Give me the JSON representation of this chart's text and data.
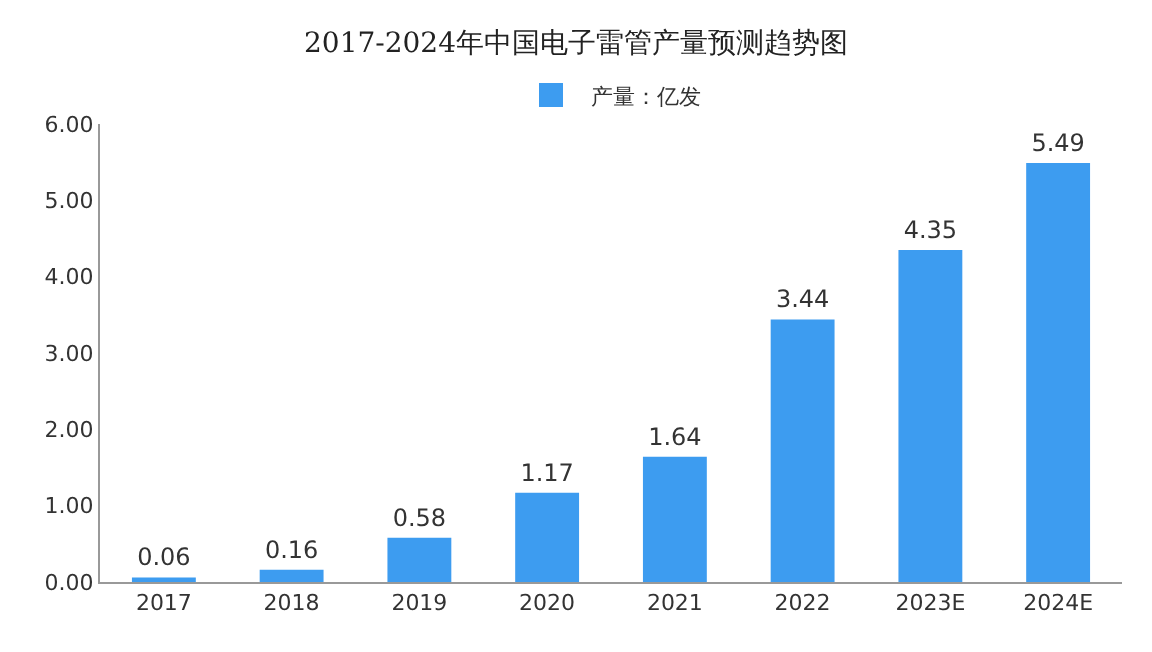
{
  "chart_data": {
    "type": "bar",
    "title": "2017-2024年中国电子雷管产量预测趋势图",
    "categories": [
      "2017",
      "2018",
      "2019",
      "2020",
      "2021",
      "2022",
      "2023E",
      "2024E"
    ],
    "series": [
      {
        "name": "产量：亿发",
        "color": "#3d9cf0",
        "values": [
          0.06,
          0.16,
          0.58,
          1.17,
          1.64,
          3.44,
          4.35,
          5.49
        ]
      }
    ],
    "ylim": [
      0,
      6
    ],
    "yticks": [
      {
        "value": 0,
        "label": "0.00"
      },
      {
        "value": 1,
        "label": "1.00"
      },
      {
        "value": 2,
        "label": "2.00"
      },
      {
        "value": 3,
        "label": "3.00"
      },
      {
        "value": 4,
        "label": "4.00"
      },
      {
        "value": 5,
        "label": "5.00"
      },
      {
        "value": 6,
        "label": "6.00"
      }
    ],
    "data_labels": true,
    "grid": false,
    "legend": "top"
  }
}
